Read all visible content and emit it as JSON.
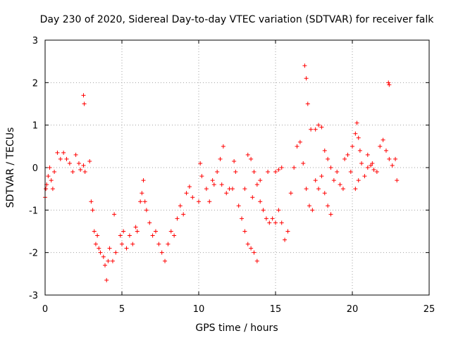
{
  "chart_data": {
    "type": "scatter",
    "title": "Day 230 of 2020, Sidereal Day-to-day VTEC variation (SDTVAR) for receiver falk",
    "xlabel": "GPS time / hours",
    "ylabel": "SDTVAR / TECUs",
    "xlim": [
      0,
      25
    ],
    "ylim": [
      -3,
      3
    ],
    "xticks": [
      0,
      5,
      10,
      15,
      20,
      25
    ],
    "yticks": [
      -3,
      -2,
      -1,
      0,
      1,
      2,
      3
    ],
    "xtick_labels": [
      "0",
      "5",
      "10",
      "15",
      "20",
      "25"
    ],
    "ytick_labels": [
      "-3",
      "-2",
      "-1",
      "0",
      "1",
      "2",
      "3"
    ],
    "grid": true,
    "marker": "+",
    "color": "#ff0000",
    "series": [
      {
        "name": "SDTVAR",
        "points": [
          [
            0.0,
            -0.7
          ],
          [
            0.05,
            -0.5
          ],
          [
            0.1,
            -0.4
          ],
          [
            0.2,
            -0.2
          ],
          [
            0.3,
            0.0
          ],
          [
            0.4,
            -0.3
          ],
          [
            0.5,
            -0.5
          ],
          [
            0.6,
            -0.1
          ],
          [
            0.8,
            0.35
          ],
          [
            1.0,
            0.2
          ],
          [
            1.2,
            0.35
          ],
          [
            1.4,
            0.2
          ],
          [
            1.6,
            0.1
          ],
          [
            1.8,
            -0.1
          ],
          [
            2.0,
            0.3
          ],
          [
            2.2,
            0.1
          ],
          [
            2.3,
            -0.05
          ],
          [
            2.5,
            0.05
          ],
          [
            2.6,
            -0.1
          ],
          [
            2.5,
            1.7
          ],
          [
            2.55,
            1.5
          ],
          [
            2.9,
            0.15
          ],
          [
            3.0,
            -0.8
          ],
          [
            3.1,
            -1.0
          ],
          [
            3.2,
            -1.5
          ],
          [
            3.3,
            -1.8
          ],
          [
            3.4,
            -1.6
          ],
          [
            3.5,
            -1.9
          ],
          [
            3.6,
            -2.0
          ],
          [
            3.8,
            -2.1
          ],
          [
            3.9,
            -2.3
          ],
          [
            4.0,
            -2.65
          ],
          [
            4.1,
            -2.2
          ],
          [
            4.2,
            -1.9
          ],
          [
            4.4,
            -2.2
          ],
          [
            4.5,
            -1.1
          ],
          [
            4.6,
            -2.0
          ],
          [
            4.9,
            -1.6
          ],
          [
            5.0,
            -1.8
          ],
          [
            5.1,
            -1.5
          ],
          [
            5.3,
            -1.9
          ],
          [
            5.5,
            -1.6
          ],
          [
            5.7,
            -1.8
          ],
          [
            5.9,
            -1.4
          ],
          [
            6.0,
            -1.5
          ],
          [
            6.2,
            -0.8
          ],
          [
            6.3,
            -0.6
          ],
          [
            6.4,
            -0.3
          ],
          [
            6.5,
            -0.8
          ],
          [
            6.6,
            -1.0
          ],
          [
            6.8,
            -1.3
          ],
          [
            7.0,
            -1.6
          ],
          [
            7.2,
            -1.5
          ],
          [
            7.4,
            -1.8
          ],
          [
            7.6,
            -2.0
          ],
          [
            7.8,
            -2.2
          ],
          [
            8.0,
            -1.8
          ],
          [
            8.2,
            -1.5
          ],
          [
            8.4,
            -1.6
          ],
          [
            8.6,
            -1.2
          ],
          [
            8.8,
            -0.9
          ],
          [
            9.0,
            -1.1
          ],
          [
            9.2,
            -0.6
          ],
          [
            9.4,
            -0.45
          ],
          [
            9.6,
            -0.7
          ],
          [
            10.0,
            -0.8
          ],
          [
            10.1,
            0.1
          ],
          [
            10.2,
            -0.2
          ],
          [
            10.5,
            -0.5
          ],
          [
            10.7,
            -0.8
          ],
          [
            10.9,
            -0.3
          ],
          [
            11.0,
            -0.4
          ],
          [
            11.2,
            -0.1
          ],
          [
            11.4,
            0.2
          ],
          [
            11.6,
            0.5
          ],
          [
            11.5,
            -0.4
          ],
          [
            11.8,
            -0.6
          ],
          [
            12.0,
            -0.5
          ],
          [
            12.2,
            -0.5
          ],
          [
            12.3,
            0.15
          ],
          [
            12.4,
            -0.1
          ],
          [
            12.6,
            -0.9
          ],
          [
            12.8,
            -1.2
          ],
          [
            13.0,
            -1.5
          ],
          [
            13.2,
            -1.8
          ],
          [
            13.4,
            -1.9
          ],
          [
            13.6,
            -2.0
          ],
          [
            13.8,
            -2.2
          ],
          [
            13.2,
            0.3
          ],
          [
            13.4,
            0.2
          ],
          [
            13.6,
            -0.1
          ],
          [
            13.8,
            -0.4
          ],
          [
            14.0,
            -0.8
          ],
          [
            14.2,
            -1.0
          ],
          [
            14.4,
            -1.2
          ],
          [
            14.6,
            -1.3
          ],
          [
            13.0,
            -0.5
          ],
          [
            13.5,
            -0.7
          ],
          [
            14.0,
            -0.3
          ],
          [
            14.5,
            -0.1
          ],
          [
            15.0,
            -0.1
          ],
          [
            15.2,
            -0.05
          ],
          [
            15.4,
            0.0
          ],
          [
            14.8,
            -1.2
          ],
          [
            15.0,
            -1.3
          ],
          [
            15.2,
            -1.0
          ],
          [
            15.4,
            -1.3
          ],
          [
            15.6,
            -1.7
          ],
          [
            15.8,
            -1.5
          ],
          [
            16.0,
            -0.6
          ],
          [
            16.2,
            0.0
          ],
          [
            16.4,
            0.5
          ],
          [
            16.6,
            0.6
          ],
          [
            16.8,
            0.1
          ],
          [
            17.0,
            -0.5
          ],
          [
            17.2,
            -0.9
          ],
          [
            17.4,
            -1.0
          ],
          [
            16.9,
            2.4
          ],
          [
            17.0,
            2.1
          ],
          [
            17.1,
            1.5
          ],
          [
            17.3,
            0.9
          ],
          [
            17.6,
            0.9
          ],
          [
            17.8,
            1.0
          ],
          [
            18.0,
            0.95
          ],
          [
            17.6,
            -0.3
          ],
          [
            17.8,
            -0.5
          ],
          [
            18.0,
            -0.2
          ],
          [
            18.2,
            -0.6
          ],
          [
            18.4,
            -0.9
          ],
          [
            18.6,
            -1.1
          ],
          [
            18.2,
            0.4
          ],
          [
            18.4,
            0.2
          ],
          [
            18.6,
            0.0
          ],
          [
            18.8,
            -0.3
          ],
          [
            19.0,
            -0.1
          ],
          [
            19.2,
            -0.4
          ],
          [
            19.4,
            -0.5
          ],
          [
            19.5,
            0.2
          ],
          [
            19.7,
            0.3
          ],
          [
            19.9,
            -0.1
          ],
          [
            20.0,
            0.5
          ],
          [
            20.2,
            0.8
          ],
          [
            20.3,
            1.05
          ],
          [
            20.4,
            0.7
          ],
          [
            20.5,
            0.4
          ],
          [
            20.6,
            0.1
          ],
          [
            20.8,
            -0.2
          ],
          [
            20.2,
            -0.5
          ],
          [
            20.4,
            -0.3
          ],
          [
            21.0,
            0.0
          ],
          [
            21.2,
            0.05
          ],
          [
            21.4,
            -0.05
          ],
          [
            21.6,
            -0.1
          ],
          [
            21.8,
            0.5
          ],
          [
            22.0,
            0.65
          ],
          [
            22.2,
            0.4
          ],
          [
            22.4,
            0.2
          ],
          [
            22.6,
            0.05
          ],
          [
            22.8,
            0.2
          ],
          [
            22.9,
            -0.3
          ],
          [
            22.35,
            2.0
          ],
          [
            22.4,
            1.95
          ],
          [
            21.0,
            0.3
          ],
          [
            21.3,
            0.1
          ]
        ]
      }
    ]
  }
}
